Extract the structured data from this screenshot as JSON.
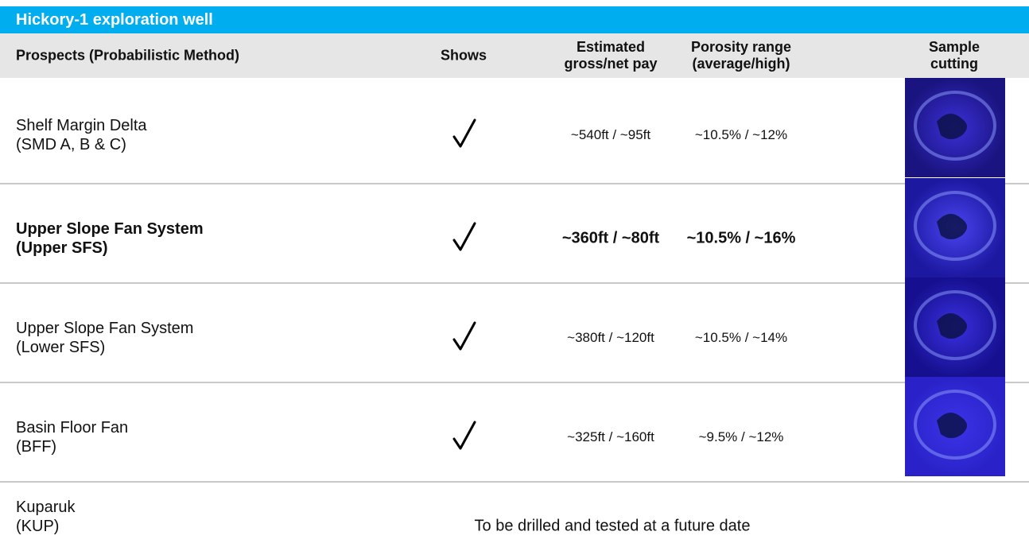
{
  "header": {
    "title": "Hickory-1 exploration well"
  },
  "columns": [
    "Prospects (Probabilistic Method)",
    "Shows",
    [
      "Estimated",
      "gross/net pay"
    ],
    [
      "Porosity range",
      "(average/high)"
    ],
    "Sample cutting"
  ],
  "rows": [
    {
      "prospect": [
        "Shelf Margin Delta",
        "(SMD A, B & C)"
      ],
      "shows": true,
      "pay": "~540ft / ~95ft",
      "porosity": "~10.5% / ~12%",
      "bold": false
    },
    {
      "prospect": [
        "Upper Slope Fan System",
        "(Upper SFS)"
      ],
      "shows": true,
      "pay": "~360ft / ~80ft",
      "porosity": "~10.5% / ~16%",
      "bold": true
    },
    {
      "prospect": [
        "Upper Slope Fan System",
        "(Lower SFS)"
      ],
      "shows": true,
      "pay": "~380ft / ~120ft",
      "porosity": "~10.5% / ~14%",
      "bold": false
    },
    {
      "prospect": [
        "Basin Floor Fan",
        "(BFF)"
      ],
      "shows": true,
      "pay": "~325ft / ~160ft",
      "porosity": "~9.5% / ~12%",
      "bold": false
    },
    {
      "prospect": [
        "Kuparuk",
        "(KUP)"
      ],
      "note": "To be drilled and tested at a future date",
      "bold": false
    }
  ]
}
